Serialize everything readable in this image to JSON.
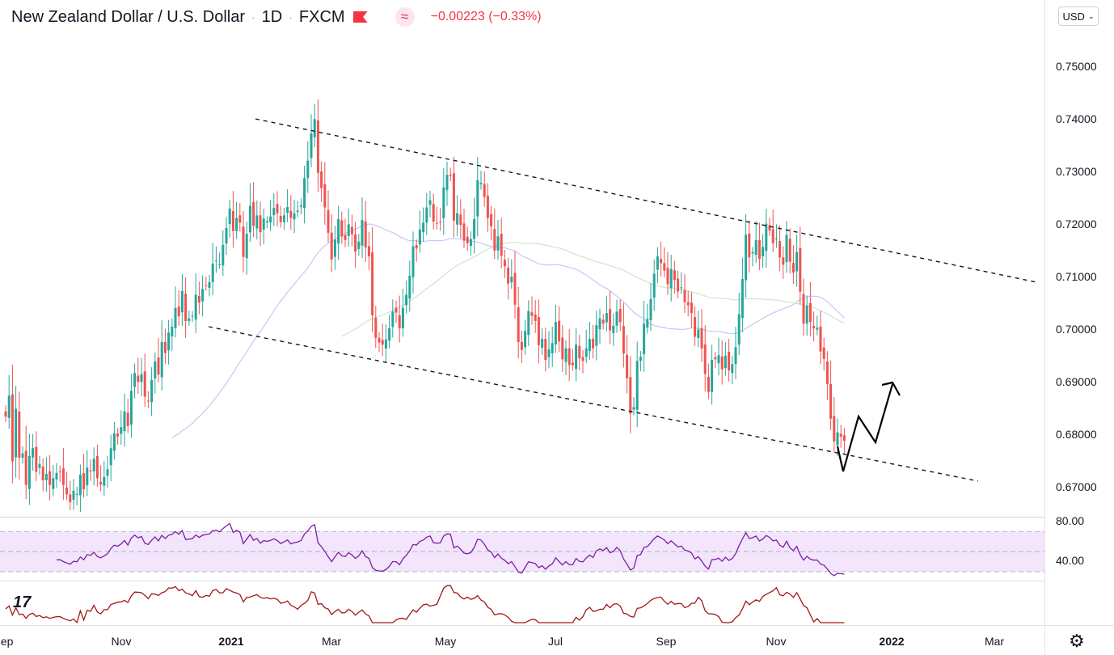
{
  "header": {
    "title": "New Zealand Dollar / U.S. Dollar",
    "interval": "1D",
    "exchange": "FXCM",
    "change": "−0.00223 (−0.33%)"
  },
  "currency_button": "USD",
  "colors": {
    "up": "#26a69a",
    "down": "#ef5350",
    "rsi_line": "#7b1fa2",
    "rsi_band": "#f3e5fc",
    "ma_fast": "#c7c7f5",
    "ma_slow": "#cfe6c9",
    "oscillator": "#a31616"
  },
  "chart_data": {
    "type": "line",
    "series": [
      {
        "values": [
          0.6835,
          0.6875,
          0.675,
          0.685,
          0.6757,
          0.6765,
          0.6705,
          0.676,
          0.6775,
          0.673,
          0.6745,
          0.6714,
          0.6726,
          0.6705,
          0.6718,
          0.6728,
          0.6729,
          0.6705,
          0.6687,
          0.6672,
          0.6694,
          0.6688,
          0.6725,
          0.6697,
          0.6738,
          0.6731,
          0.6755,
          0.6718,
          0.6706,
          0.672,
          0.6735,
          0.6775,
          0.6803,
          0.6797,
          0.6815,
          0.6845,
          0.6817,
          0.6884,
          0.6918,
          0.6901,
          0.6916,
          0.6873,
          0.6865,
          0.6905,
          0.694,
          0.6915,
          0.6977,
          0.6956,
          0.6995,
          0.7006,
          0.7042,
          0.7026,
          0.7074,
          0.7017,
          0.7022,
          0.7027,
          0.7067,
          0.7052,
          0.7078,
          0.7085,
          0.7091,
          0.7126,
          0.7132,
          0.7125,
          0.7162,
          0.7194,
          0.7231,
          0.7188,
          0.7213,
          0.7204,
          0.7139,
          0.7183,
          0.7236,
          0.7198,
          0.7218,
          0.7186,
          0.7212,
          0.7207,
          0.7216,
          0.7232,
          0.7222,
          0.7205,
          0.7218,
          0.7234,
          0.7213,
          0.7222,
          0.7227,
          0.7237,
          0.7289,
          0.7322,
          0.7374,
          0.7401,
          0.7299,
          0.727,
          0.7233,
          0.7185,
          0.7134,
          0.7172,
          0.7211,
          0.7178,
          0.7171,
          0.7201,
          0.7182,
          0.7149,
          0.7168,
          0.7209,
          0.7157,
          0.714,
          0.7028,
          0.6985,
          0.6976,
          0.6972,
          0.6982,
          0.7003,
          0.7035,
          0.7033,
          0.7003,
          0.7042,
          0.7067,
          0.7103,
          0.7159,
          0.7155,
          0.7191,
          0.7204,
          0.7233,
          0.7247,
          0.7206,
          0.7203,
          0.7205,
          0.7271,
          0.7295,
          0.7293,
          0.7208,
          0.7222,
          0.72,
          0.717,
          0.7165,
          0.7173,
          0.7211,
          0.7285,
          0.728,
          0.7253,
          0.7213,
          0.7197,
          0.7151,
          0.7178,
          0.7141,
          0.7121,
          0.7088,
          0.7101,
          0.7048,
          0.6977,
          0.6962,
          0.6998,
          0.7036,
          0.7027,
          0.7017,
          0.6971,
          0.6983,
          0.6943,
          0.6963,
          0.6975,
          0.7015,
          0.6978,
          0.6944,
          0.6965,
          0.6933,
          0.6933,
          0.6972,
          0.6946,
          0.6941,
          0.6965,
          0.6983,
          0.6965,
          0.7009,
          0.7022,
          0.7012,
          0.7032,
          0.6999,
          0.7008,
          0.7035,
          0.7015,
          0.6955,
          0.6908,
          0.6841,
          0.6853,
          0.6941,
          0.6949,
          0.7012,
          0.7021,
          0.7059,
          0.7107,
          0.714,
          0.7127,
          0.7113,
          0.7087,
          0.7116,
          0.7095,
          0.7073,
          0.7081,
          0.7053,
          0.7047,
          0.7032,
          0.6987,
          0.7001,
          0.6965,
          0.6916,
          0.6882,
          0.6943,
          0.6944,
          0.6952,
          0.6925,
          0.6951,
          0.6923,
          0.6935,
          0.6967,
          0.703,
          0.7097,
          0.7181,
          0.7138,
          0.7148,
          0.7171,
          0.7135,
          0.7158,
          0.7202,
          0.7189,
          0.7165,
          0.7174,
          0.7138,
          0.7124,
          0.7181,
          0.713,
          0.7109,
          0.7148,
          0.7073,
          0.7012,
          0.7046,
          0.7015,
          0.7003,
          0.7004,
          0.6959,
          0.6945,
          0.6897,
          0.6831,
          0.6788,
          0.6805,
          0.6797,
          0.6789
        ]
      }
    ],
    "x_tick_labels": [
      "Sep",
      "Nov",
      "2021",
      "Mar",
      "May",
      "Jul",
      "Sep",
      "Nov",
      "2022",
      "Mar"
    ],
    "y_tick_labels": [
      "0.75000",
      "0.74000",
      "0.73000",
      "0.72000",
      "0.71000",
      "0.70000",
      "0.69000",
      "0.68000",
      "0.67000"
    ],
    "ylim": [
      0.6645,
      0.7535
    ],
    "rsi_tick_labels": [
      "80.00",
      "40.00"
    ],
    "rsi_ylim": [
      21,
      84
    ],
    "rsi_bands": [
      70,
      50,
      30
    ]
  }
}
